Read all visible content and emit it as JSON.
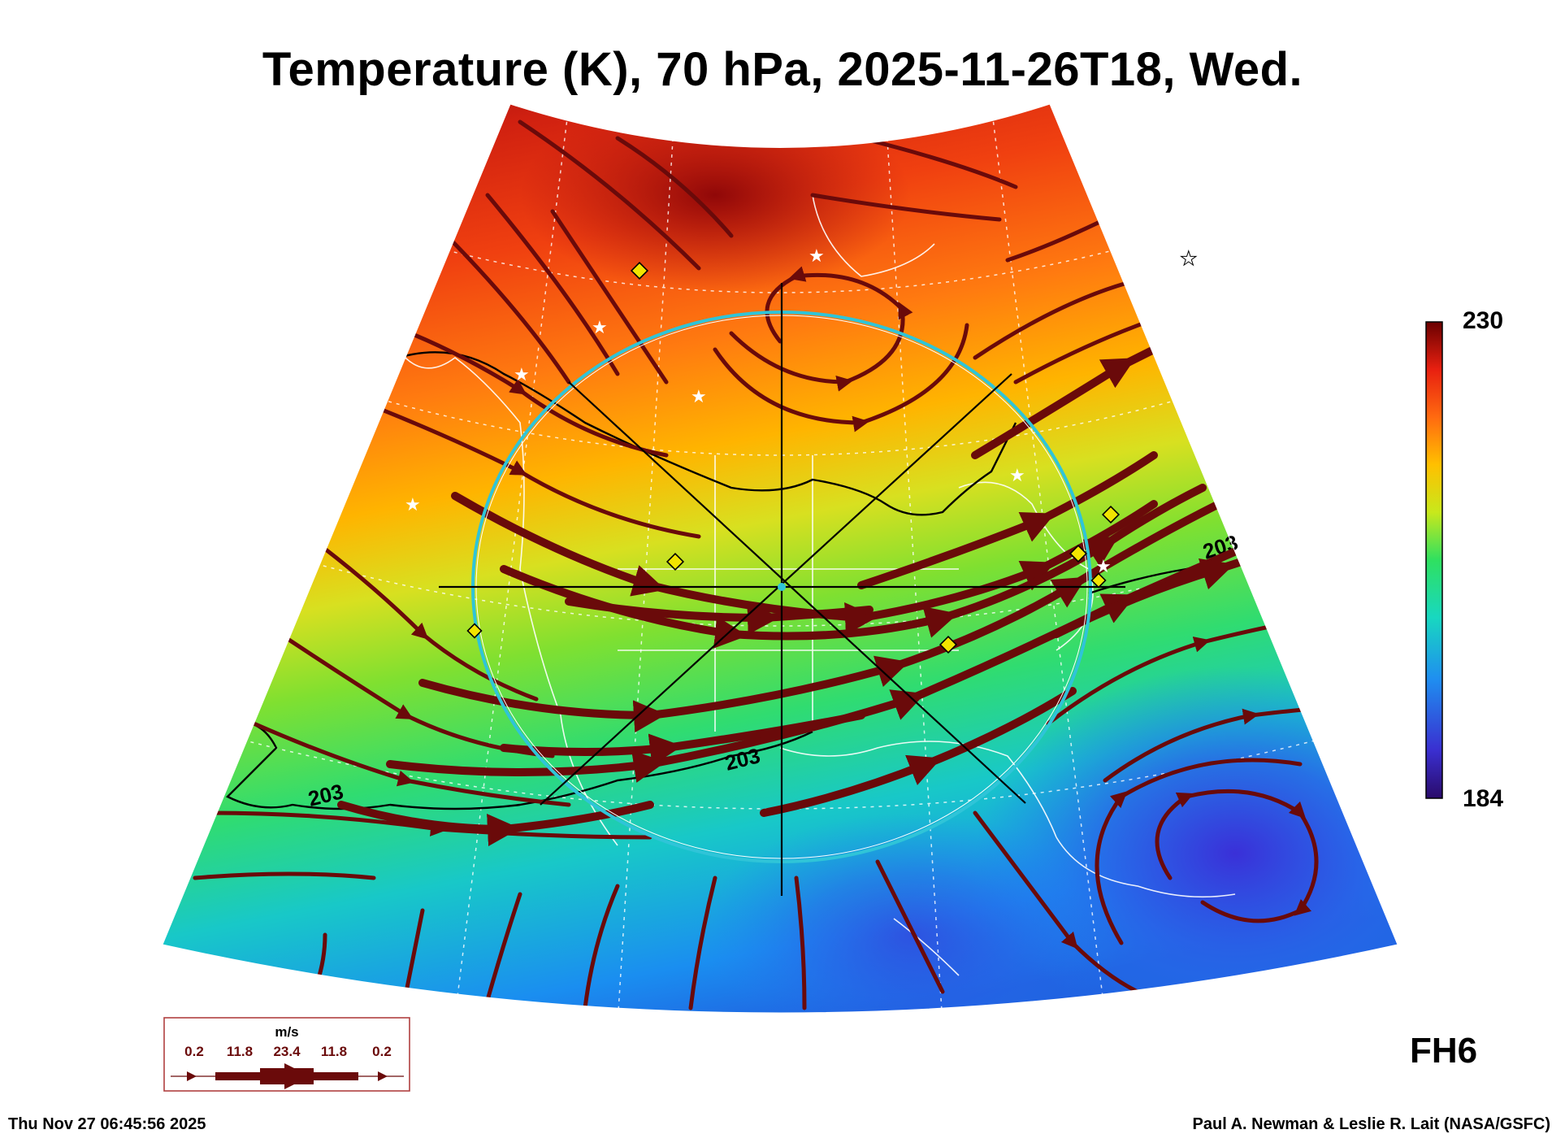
{
  "title": "Temperature (K), 70 hPa, 2025-11-26T18, Wed.",
  "colorbar": {
    "max_label": "230",
    "min_label": "184",
    "stops": [
      "#2a0b6a",
      "#3a2fd0",
      "#1f8ef0",
      "#18d8c0",
      "#2fe060",
      "#c8e81c",
      "#ffc000",
      "#ff6a10",
      "#e82010",
      "#6a0000"
    ]
  },
  "contour_labels": [
    "203",
    "203",
    "203"
  ],
  "legend": {
    "unit": "m/s",
    "scale_values": [
      "0.2",
      "11.8",
      "23.4",
      "11.8",
      "0.2"
    ]
  },
  "forecast_hour": "FH6",
  "footer": {
    "timestamp": "Thu Nov 27 06:45:56 2025",
    "credit": "Paul A. Newman & Leslie R. Lait (NASA/GSFC)"
  },
  "colors": {
    "streamline": "#6a0a0a",
    "circle": "#2fc4d8",
    "marker": "#f2e400"
  }
}
